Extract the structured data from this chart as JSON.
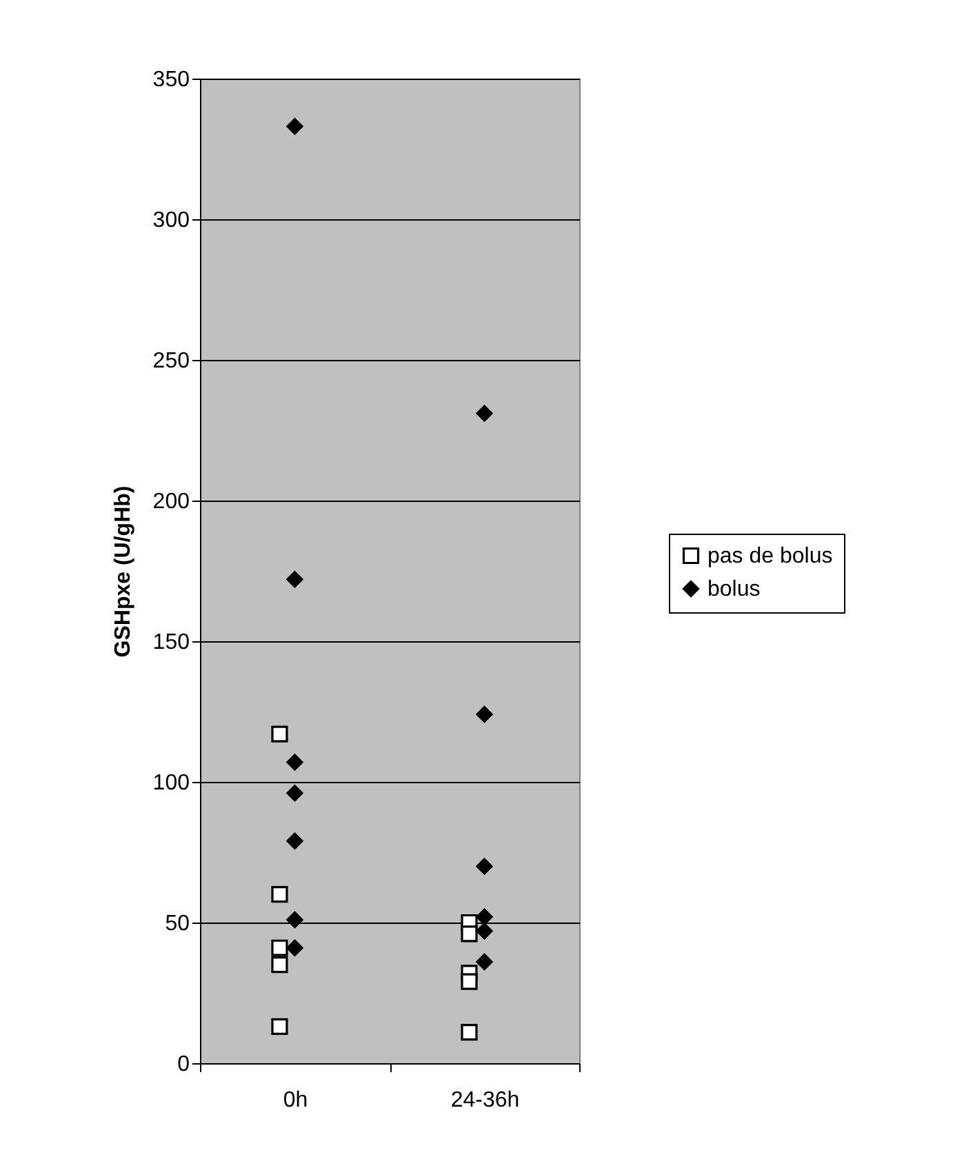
{
  "chart_data": {
    "type": "scatter",
    "ylabel": "GSHpxe (U/gHb)",
    "categories": [
      "0h",
      "24-36h"
    ],
    "series": [
      {
        "name": "pas de bolus",
        "color": "#ffffff",
        "marker": "square",
        "x": [
          "0h",
          "0h",
          "0h",
          "0h",
          "0h",
          "24-36h",
          "24-36h",
          "24-36h",
          "24-36h",
          "24-36h"
        ],
        "values": [
          117,
          60,
          41,
          35,
          13,
          50,
          46,
          32,
          29,
          11
        ]
      },
      {
        "name": "bolus",
        "color": "#000000",
        "marker": "diamond",
        "x": [
          "0h",
          "0h",
          "0h",
          "0h",
          "0h",
          "0h",
          "0h",
          "24-36h",
          "24-36h",
          "24-36h",
          "24-36h",
          "24-36h",
          "24-36h"
        ],
        "values": [
          333,
          172,
          107,
          96,
          79,
          51,
          41,
          231,
          124,
          70,
          52,
          47,
          36
        ]
      }
    ],
    "ylim": [
      0,
      350
    ],
    "yticks": [
      0,
      50,
      100,
      150,
      200,
      250,
      300,
      350
    ],
    "grid": "y",
    "legend": "right"
  }
}
